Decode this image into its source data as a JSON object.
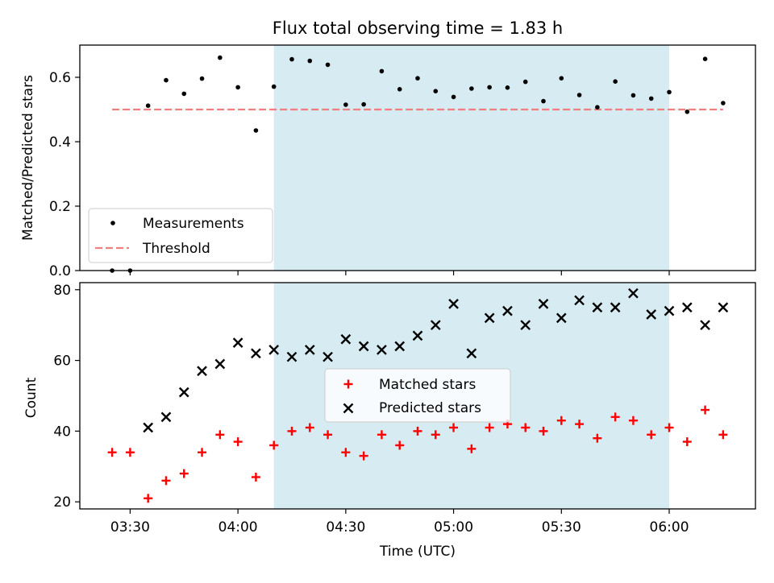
{
  "chart_data": [
    {
      "type": "scatter",
      "title": "Flux total observing time = 1.83 h",
      "ylabel": "Matched/Predicted stars",
      "ylim": [
        0.0,
        0.7
      ],
      "yticks": [
        "0.0",
        "0.2",
        "0.4",
        "0.6"
      ],
      "grid": false,
      "legend_position": "lower-left",
      "shaded_interval": {
        "start": "04:10",
        "end": "06:00",
        "color": "#add8e6"
      },
      "series": [
        {
          "name": "Measurements",
          "marker": "dot",
          "color": "#000000",
          "points": [
            [
              "03:25",
              0.0
            ],
            [
              "03:30",
              0.0
            ],
            [
              "03:35",
              0.512
            ],
            [
              "03:40",
              0.591
            ],
            [
              "03:45",
              0.549
            ],
            [
              "03:50",
              0.596
            ],
            [
              "03:55",
              0.661
            ],
            [
              "04:00",
              0.569
            ],
            [
              "04:05",
              0.435
            ],
            [
              "04:10",
              0.571
            ],
            [
              "04:15",
              0.656
            ],
            [
              "04:20",
              0.651
            ],
            [
              "04:25",
              0.639
            ],
            [
              "04:30",
              0.515
            ],
            [
              "04:35",
              0.516
            ],
            [
              "04:40",
              0.619
            ],
            [
              "04:45",
              0.563
            ],
            [
              "04:50",
              0.597
            ],
            [
              "04:55",
              0.557
            ],
            [
              "05:00",
              0.539
            ],
            [
              "05:05",
              0.565
            ],
            [
              "05:10",
              0.569
            ],
            [
              "05:15",
              0.568
            ],
            [
              "05:20",
              0.586
            ],
            [
              "05:25",
              0.526
            ],
            [
              "05:30",
              0.597
            ],
            [
              "05:35",
              0.545
            ],
            [
              "05:40",
              0.507
            ],
            [
              "05:45",
              0.587
            ],
            [
              "05:50",
              0.544
            ],
            [
              "05:55",
              0.534
            ],
            [
              "06:00",
              0.554
            ],
            [
              "06:05",
              0.493
            ],
            [
              "06:10",
              0.657
            ],
            [
              "06:15",
              0.52
            ]
          ]
        },
        {
          "name": "Threshold",
          "style": "dashed-line",
          "color": "#f08080",
          "points": [
            [
              "03:25",
              0.5
            ],
            [
              "06:15",
              0.5
            ]
          ]
        }
      ]
    },
    {
      "type": "scatter",
      "xlabel": "Time (UTC)",
      "ylabel": "Count",
      "ylim": [
        18,
        82
      ],
      "yticks": [
        "20",
        "40",
        "60",
        "80"
      ],
      "x_range": [
        "03:16",
        "06:24"
      ],
      "xticks": [
        "03:30",
        "04:00",
        "04:30",
        "05:00",
        "05:30",
        "06:00"
      ],
      "grid": false,
      "legend_position": "center",
      "shaded_interval": {
        "start": "04:10",
        "end": "06:00",
        "color": "#add8e6"
      },
      "series": [
        {
          "name": "Matched stars",
          "marker": "plus",
          "color": "#ff0000",
          "points": [
            [
              "03:25",
              34
            ],
            [
              "03:30",
              34
            ],
            [
              "03:35",
              21
            ],
            [
              "03:40",
              26
            ],
            [
              "03:45",
              28
            ],
            [
              "03:50",
              34
            ],
            [
              "03:55",
              39
            ],
            [
              "04:00",
              37
            ],
            [
              "04:05",
              27
            ],
            [
              "04:10",
              36
            ],
            [
              "04:15",
              40
            ],
            [
              "04:20",
              41
            ],
            [
              "04:25",
              39
            ],
            [
              "04:30",
              34
            ],
            [
              "04:35",
              33
            ],
            [
              "04:40",
              39
            ],
            [
              "04:45",
              36
            ],
            [
              "04:50",
              40
            ],
            [
              "04:55",
              39
            ],
            [
              "05:00",
              41
            ],
            [
              "05:05",
              35
            ],
            [
              "05:10",
              41
            ],
            [
              "05:15",
              42
            ],
            [
              "05:20",
              41
            ],
            [
              "05:25",
              40
            ],
            [
              "05:30",
              43
            ],
            [
              "05:35",
              42
            ],
            [
              "05:40",
              38
            ],
            [
              "05:45",
              44
            ],
            [
              "05:50",
              43
            ],
            [
              "05:55",
              39
            ],
            [
              "06:00",
              41
            ],
            [
              "06:05",
              37
            ],
            [
              "06:10",
              46
            ],
            [
              "06:15",
              39
            ]
          ]
        },
        {
          "name": "Predicted stars",
          "marker": "x",
          "color": "#000000",
          "points": [
            [
              "03:35",
              41
            ],
            [
              "03:40",
              44
            ],
            [
              "03:45",
              51
            ],
            [
              "03:50",
              57
            ],
            [
              "03:55",
              59
            ],
            [
              "04:00",
              65
            ],
            [
              "04:05",
              62
            ],
            [
              "04:10",
              63
            ],
            [
              "04:15",
              61
            ],
            [
              "04:20",
              63
            ],
            [
              "04:25",
              61
            ],
            [
              "04:30",
              66
            ],
            [
              "04:35",
              64
            ],
            [
              "04:40",
              63
            ],
            [
              "04:45",
              64
            ],
            [
              "04:50",
              67
            ],
            [
              "04:55",
              70
            ],
            [
              "05:00",
              76
            ],
            [
              "05:05",
              62
            ],
            [
              "05:10",
              72
            ],
            [
              "05:15",
              74
            ],
            [
              "05:20",
              70
            ],
            [
              "05:25",
              76
            ],
            [
              "05:30",
              72
            ],
            [
              "05:35",
              77
            ],
            [
              "05:40",
              75
            ],
            [
              "05:45",
              75
            ],
            [
              "05:50",
              79
            ],
            [
              "05:55",
              73
            ],
            [
              "06:00",
              74
            ],
            [
              "06:05",
              75
            ],
            [
              "06:10",
              70
            ],
            [
              "06:15",
              75
            ]
          ]
        }
      ]
    }
  ]
}
